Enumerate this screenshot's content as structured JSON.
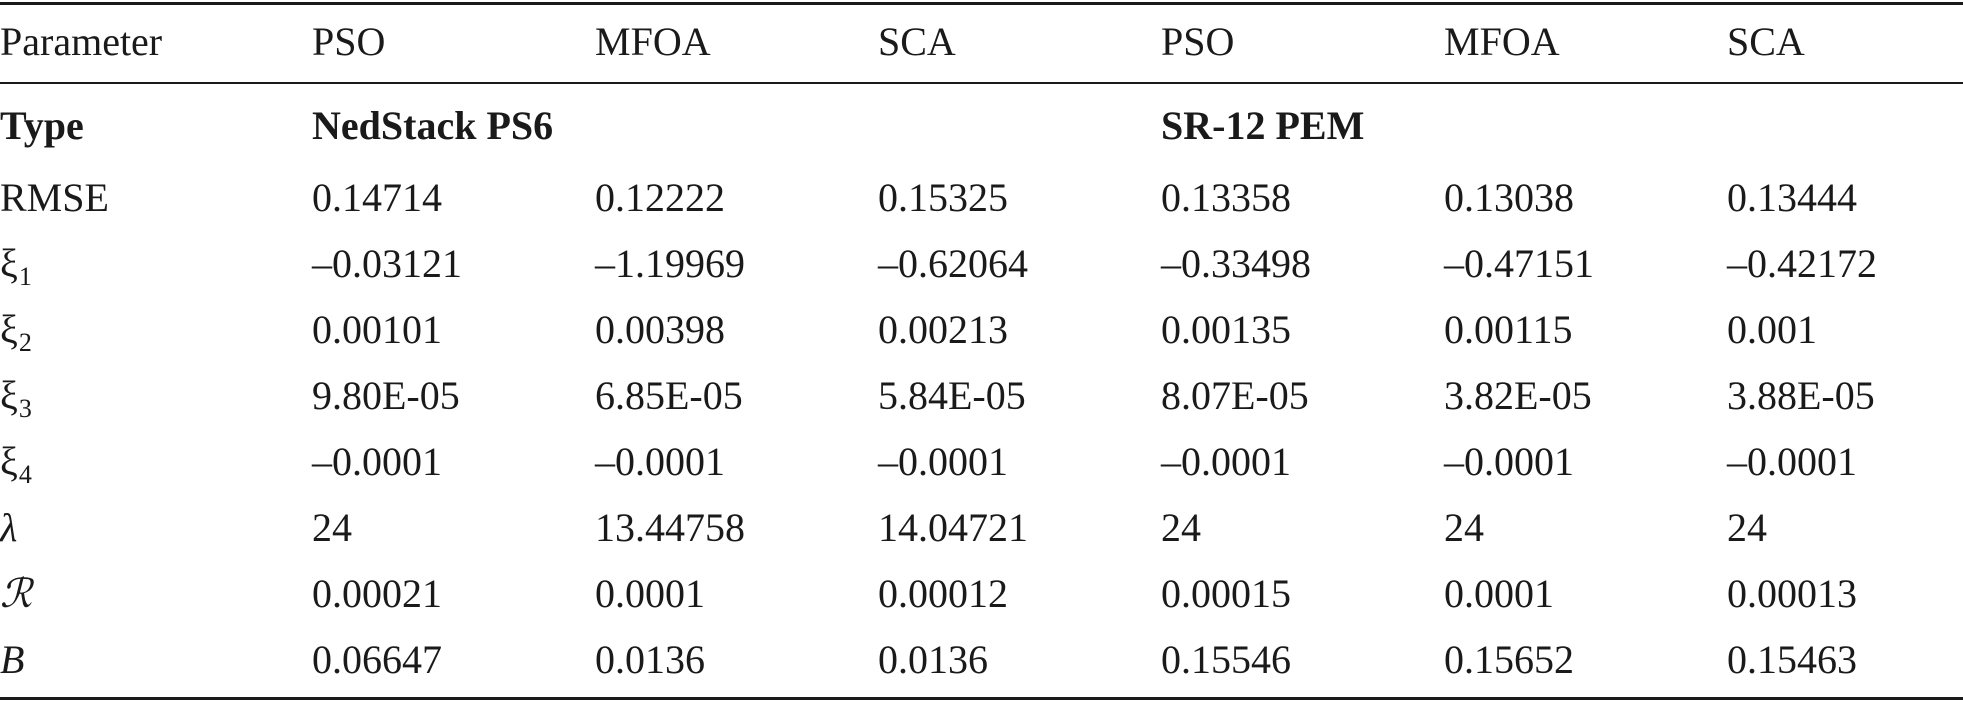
{
  "table": {
    "header": [
      "Parameter",
      "PSO",
      "MFOA",
      "SCA",
      "PSO",
      "MFOA",
      "SCA"
    ],
    "type_row": {
      "label": "Type",
      "group1": "NedStack PS6",
      "group2": "SR-12 PEM"
    },
    "rows": [
      {
        "param": "RMSE",
        "sub": "",
        "italic": false,
        "values": [
          "0.14714",
          "0.12222",
          "0.15325",
          "0.13358",
          "0.13038",
          "0.13444"
        ]
      },
      {
        "param": "ξ",
        "sub": "1",
        "italic": false,
        "values": [
          "–0.03121",
          "–1.19969",
          "–0.62064",
          "–0.33498",
          "–0.47151",
          "–0.42172"
        ]
      },
      {
        "param": "ξ",
        "sub": "2",
        "italic": false,
        "values": [
          "0.00101",
          "0.00398",
          "0.00213",
          "0.00135",
          "0.00115",
          "0.001"
        ]
      },
      {
        "param": "ξ",
        "sub": "3",
        "italic": false,
        "values": [
          "9.80E-05",
          "6.85E-05",
          "5.84E-05",
          "8.07E-05",
          "3.82E-05",
          "3.88E-05"
        ]
      },
      {
        "param": "ξ",
        "sub": "4",
        "italic": false,
        "values": [
          "–0.0001",
          "–0.0001",
          "–0.0001",
          "–0.0001",
          "–0.0001",
          "–0.0001"
        ]
      },
      {
        "param": "λ",
        "sub": "",
        "italic": true,
        "values": [
          "24",
          "13.44758",
          "14.04721",
          "24",
          "24",
          "24"
        ]
      },
      {
        "param": "ℛ",
        "sub": "",
        "italic": true,
        "values": [
          "0.00021",
          "0.0001",
          "0.00012",
          "0.00015",
          "0.0001",
          "0.00013"
        ]
      },
      {
        "param": "B",
        "sub": "",
        "italic": true,
        "values": [
          "0.06647",
          "0.0136",
          "0.0136",
          "0.15546",
          "0.15652",
          "0.15463"
        ]
      }
    ]
  }
}
